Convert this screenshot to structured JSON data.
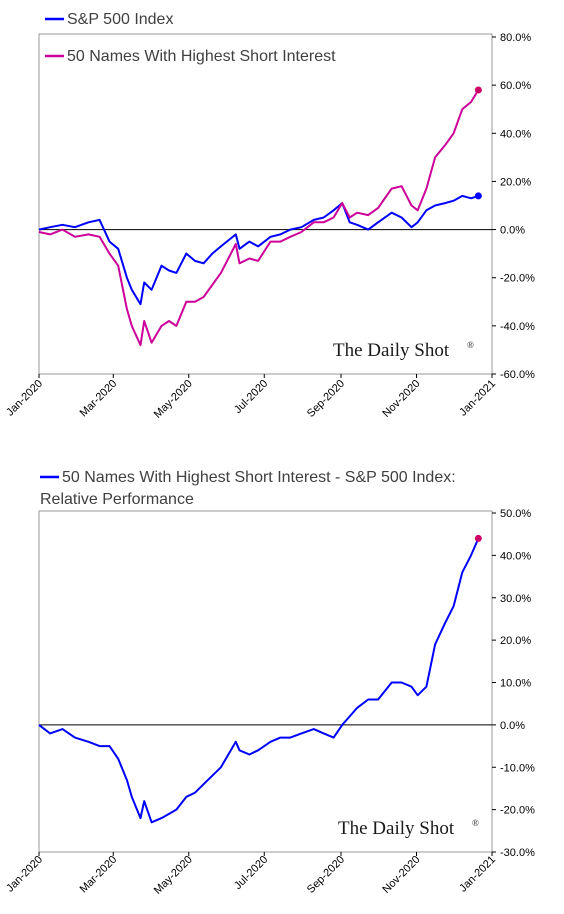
{
  "brand": {
    "name": "The Daily Shot",
    "mark": "®"
  },
  "colors": {
    "sp500": "#0000ff",
    "short_interest": "#cc0099",
    "relative": "#0000ff",
    "end_marker": "#cc0066",
    "axis": "#000000",
    "frame": "#7f7f7f"
  },
  "chart_data": [
    {
      "type": "line",
      "title": "",
      "xlabel": "",
      "ylabel": "",
      "x_ticks": [
        "Jan-2020",
        "Mar-2020",
        "May-2020",
        "Jul-2020",
        "Sep-2020",
        "Nov-2020",
        "Jan-2021"
      ],
      "y_ticks": [
        "80.0%",
        "60.0%",
        "40.0%",
        "20.0%",
        "0.0%",
        "-20.0%",
        "-40.0%",
        "-60.0%"
      ],
      "ylim": [
        -60,
        80
      ],
      "xlim": [
        "2020-01-01",
        "2021-01-01"
      ],
      "y_axis_side": "right",
      "legend_position": "top-left",
      "series": [
        {
          "name": "S&P 500 Index",
          "color": "#0000ff",
          "points": [
            [
              "2020-01-01",
              0
            ],
            [
              "2020-01-10",
              1
            ],
            [
              "2020-01-20",
              2
            ],
            [
              "2020-01-30",
              1
            ],
            [
              "2020-02-10",
              3
            ],
            [
              "2020-02-19",
              4
            ],
            [
              "2020-02-27",
              -5
            ],
            [
              "2020-03-05",
              -8
            ],
            [
              "2020-03-12",
              -20
            ],
            [
              "2020-03-16",
              -25
            ],
            [
              "2020-03-23",
              -31
            ],
            [
              "2020-03-26",
              -22
            ],
            [
              "2020-04-01",
              -25
            ],
            [
              "2020-04-09",
              -15
            ],
            [
              "2020-04-15",
              -17
            ],
            [
              "2020-04-21",
              -18
            ],
            [
              "2020-04-29",
              -10
            ],
            [
              "2020-05-06",
              -13
            ],
            [
              "2020-05-13",
              -14
            ],
            [
              "2020-05-20",
              -10
            ],
            [
              "2020-05-27",
              -7
            ],
            [
              "2020-06-08",
              -2
            ],
            [
              "2020-06-11",
              -8
            ],
            [
              "2020-06-19",
              -5
            ],
            [
              "2020-06-26",
              -7
            ],
            [
              "2020-07-06",
              -3
            ],
            [
              "2020-07-14",
              -2
            ],
            [
              "2020-07-22",
              0
            ],
            [
              "2020-07-31",
              1
            ],
            [
              "2020-08-10",
              4
            ],
            [
              "2020-08-18",
              5
            ],
            [
              "2020-08-26",
              8
            ],
            [
              "2020-09-02",
              11
            ],
            [
              "2020-09-08",
              3
            ],
            [
              "2020-09-14",
              2
            ],
            [
              "2020-09-23",
              0
            ],
            [
              "2020-10-01",
              3
            ],
            [
              "2020-10-12",
              7
            ],
            [
              "2020-10-20",
              5
            ],
            [
              "2020-10-28",
              1
            ],
            [
              "2020-11-02",
              3
            ],
            [
              "2020-11-09",
              8
            ],
            [
              "2020-11-16",
              10
            ],
            [
              "2020-11-24",
              11
            ],
            [
              "2020-12-01",
              12
            ],
            [
              "2020-12-08",
              14
            ],
            [
              "2020-12-15",
              13
            ],
            [
              "2020-12-21",
              14
            ]
          ]
        },
        {
          "name": "50 Names With Highest Short Interest",
          "color": "#cc0099",
          "points": [
            [
              "2020-01-01",
              -1
            ],
            [
              "2020-01-10",
              -2
            ],
            [
              "2020-01-20",
              0
            ],
            [
              "2020-01-30",
              -3
            ],
            [
              "2020-02-10",
              -2
            ],
            [
              "2020-02-19",
              -3
            ],
            [
              "2020-02-27",
              -10
            ],
            [
              "2020-03-05",
              -15
            ],
            [
              "2020-03-12",
              -33
            ],
            [
              "2020-03-16",
              -40
            ],
            [
              "2020-03-23",
              -48
            ],
            [
              "2020-03-26",
              -38
            ],
            [
              "2020-04-01",
              -47
            ],
            [
              "2020-04-09",
              -40
            ],
            [
              "2020-04-15",
              -38
            ],
            [
              "2020-04-21",
              -40
            ],
            [
              "2020-04-29",
              -30
            ],
            [
              "2020-05-06",
              -30
            ],
            [
              "2020-05-13",
              -28
            ],
            [
              "2020-05-20",
              -23
            ],
            [
              "2020-05-27",
              -18
            ],
            [
              "2020-06-08",
              -6
            ],
            [
              "2020-06-11",
              -14
            ],
            [
              "2020-06-19",
              -12
            ],
            [
              "2020-06-26",
              -13
            ],
            [
              "2020-07-06",
              -5
            ],
            [
              "2020-07-14",
              -5
            ],
            [
              "2020-07-22",
              -3
            ],
            [
              "2020-07-31",
              -1
            ],
            [
              "2020-08-10",
              3
            ],
            [
              "2020-08-18",
              3
            ],
            [
              "2020-08-26",
              5
            ],
            [
              "2020-09-02",
              11
            ],
            [
              "2020-09-08",
              5
            ],
            [
              "2020-09-14",
              7
            ],
            [
              "2020-09-23",
              6
            ],
            [
              "2020-10-01",
              9
            ],
            [
              "2020-10-12",
              17
            ],
            [
              "2020-10-20",
              18
            ],
            [
              "2020-10-28",
              10
            ],
            [
              "2020-11-02",
              8
            ],
            [
              "2020-11-09",
              17
            ],
            [
              "2020-11-16",
              30
            ],
            [
              "2020-11-24",
              35
            ],
            [
              "2020-12-01",
              40
            ],
            [
              "2020-12-08",
              50
            ],
            [
              "2020-12-15",
              53
            ],
            [
              "2020-12-21",
              58
            ]
          ]
        }
      ]
    },
    {
      "type": "line",
      "title": "",
      "xlabel": "",
      "ylabel": "",
      "x_ticks": [
        "Jan-2020",
        "Mar-2020",
        "May-2020",
        "Jul-2020",
        "Sep-2020",
        "Nov-2020",
        "Jan-2021"
      ],
      "y_ticks": [
        "50.0%",
        "40.0%",
        "30.0%",
        "20.0%",
        "10.0%",
        "0.0%",
        "-10.0%",
        "-20.0%",
        "-30.0%"
      ],
      "ylim": [
        -30,
        50
      ],
      "xlim": [
        "2020-01-01",
        "2021-01-01"
      ],
      "y_axis_side": "right",
      "legend_position": "top-left",
      "series": [
        {
          "name": "50 Names With Highest Short Interest  - S&P 500 Index: Relative Performance",
          "color": "#0000ff",
          "points": [
            [
              "2020-01-01",
              0
            ],
            [
              "2020-01-10",
              -2
            ],
            [
              "2020-01-20",
              -1
            ],
            [
              "2020-01-30",
              -3
            ],
            [
              "2020-02-10",
              -4
            ],
            [
              "2020-02-19",
              -5
            ],
            [
              "2020-02-27",
              -5
            ],
            [
              "2020-03-05",
              -8
            ],
            [
              "2020-03-12",
              -13
            ],
            [
              "2020-03-16",
              -17
            ],
            [
              "2020-03-23",
              -22
            ],
            [
              "2020-03-26",
              -18
            ],
            [
              "2020-04-01",
              -23
            ],
            [
              "2020-04-09",
              -22
            ],
            [
              "2020-04-15",
              -21
            ],
            [
              "2020-04-21",
              -20
            ],
            [
              "2020-04-29",
              -17
            ],
            [
              "2020-05-06",
              -16
            ],
            [
              "2020-05-13",
              -14
            ],
            [
              "2020-05-20",
              -12
            ],
            [
              "2020-05-27",
              -10
            ],
            [
              "2020-06-08",
              -4
            ],
            [
              "2020-06-11",
              -6
            ],
            [
              "2020-06-19",
              -7
            ],
            [
              "2020-06-26",
              -6
            ],
            [
              "2020-07-06",
              -4
            ],
            [
              "2020-07-14",
              -3
            ],
            [
              "2020-07-22",
              -3
            ],
            [
              "2020-07-31",
              -2
            ],
            [
              "2020-08-10",
              -1
            ],
            [
              "2020-08-18",
              -2
            ],
            [
              "2020-08-26",
              -3
            ],
            [
              "2020-09-02",
              0
            ],
            [
              "2020-09-08",
              2
            ],
            [
              "2020-09-14",
              4
            ],
            [
              "2020-09-23",
              6
            ],
            [
              "2020-10-01",
              6
            ],
            [
              "2020-10-12",
              10
            ],
            [
              "2020-10-20",
              10
            ],
            [
              "2020-10-28",
              9
            ],
            [
              "2020-11-02",
              7
            ],
            [
              "2020-11-09",
              9
            ],
            [
              "2020-11-16",
              19
            ],
            [
              "2020-11-24",
              24
            ],
            [
              "2020-12-01",
              28
            ],
            [
              "2020-12-08",
              36
            ],
            [
              "2020-12-15",
              40
            ],
            [
              "2020-12-21",
              44
            ]
          ]
        }
      ]
    }
  ]
}
